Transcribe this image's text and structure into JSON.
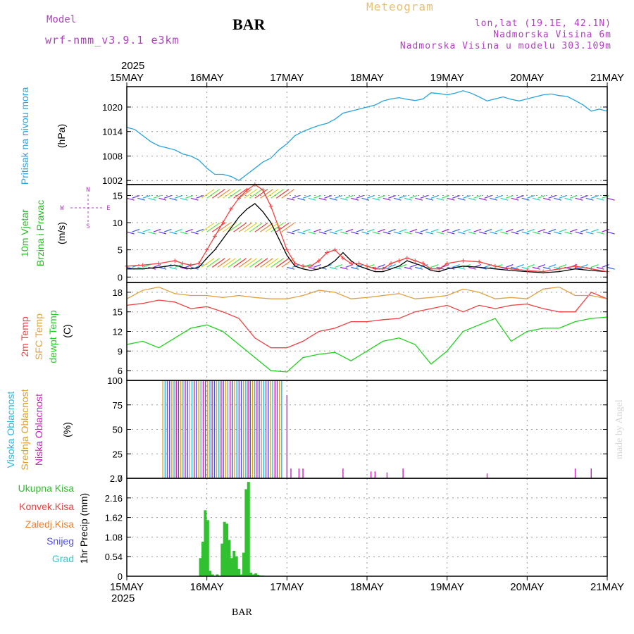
{
  "header": {
    "model_label": "Model",
    "model_name": "wrf-nmm_v3.9.1 e3km",
    "station": "BAR",
    "title": "Meteogram",
    "lonlat": "lon,lat (19.1E, 42.1N)",
    "elevation": "Nadmorska Visina 6m",
    "model_elevation": "Nadmorska Visina u modelu 303.109m",
    "watermark": "made by Angel",
    "footer_station": "BAR"
  },
  "colors": {
    "pressure": "#29a3e0",
    "temp2m": "#f04040",
    "sfc_temp": "#e0a040",
    "dewpt": "#20d020",
    "high_cloud": "#29b8e0",
    "mid_cloud": "#e0a020",
    "low_cloud": "#d020c0",
    "total_precip": "#30c030",
    "conv_precip": "#f04040",
    "frz_precip": "#f08030",
    "snow": "#5050e0",
    "hail": "#30c8c8",
    "header_purple": "#b040c0",
    "title_gold": "#e8c070"
  },
  "chart_data": [
    {
      "type": "line",
      "panel": "pressure",
      "year": "2025",
      "x_tick_labels": [
        "15MAY",
        "16MAY",
        "17MAY",
        "18MAY",
        "19MAY",
        "20MAY",
        "21MAY"
      ],
      "ylabel_name": "Pritisak na nivou mora",
      "ylabel_unit": "(hPa)",
      "ylim": [
        1001,
        1025
      ],
      "yticks": [
        1002,
        1008,
        1014,
        1020
      ],
      "series": [
        {
          "name": "Sea level pressure",
          "color_key": "pressure",
          "x": [
            0,
            0.1,
            0.2,
            0.3,
            0.4,
            0.5,
            0.6,
            0.7,
            0.8,
            0.9,
            1.0,
            1.1,
            1.2,
            1.3,
            1.4,
            1.5,
            1.6,
            1.7,
            1.8,
            1.9,
            2.0,
            2.1,
            2.2,
            2.3,
            2.4,
            2.5,
            2.6,
            2.7,
            2.8,
            2.9,
            3.0,
            3.1,
            3.2,
            3.3,
            3.4,
            3.5,
            3.6,
            3.7,
            3.8,
            3.9,
            4.0,
            4.1,
            4.2,
            4.3,
            4.4,
            4.5,
            4.6,
            4.7,
            4.8,
            4.9,
            5.0,
            5.1,
            5.2,
            5.3,
            5.4,
            5.5,
            5.6,
            5.7,
            5.8,
            5.9,
            6.0
          ],
          "values": [
            1015,
            1014.5,
            1013,
            1011.5,
            1010.5,
            1010,
            1009.5,
            1008.5,
            1008,
            1007,
            1005,
            1003.5,
            1003.5,
            1003,
            1002,
            1003.5,
            1005,
            1006.5,
            1007.5,
            1009.5,
            1011,
            1013,
            1014,
            1014.8,
            1015.5,
            1016,
            1017,
            1018.5,
            1019,
            1019.5,
            1020,
            1020.5,
            1021.5,
            1022,
            1022.3,
            1021.9,
            1021.6,
            1022,
            1023.5,
            1023.3,
            1023,
            1023.4,
            1024,
            1023.4,
            1022.5,
            1021.5,
            1022,
            1022.5,
            1021.9,
            1021.5,
            1022,
            1022.5,
            1023,
            1023.2,
            1022.8,
            1022.6,
            1021.6,
            1020.5,
            1019,
            1019.5,
            1019
          ]
        }
      ]
    },
    {
      "type": "line",
      "panel": "wind",
      "ylabel_name": "10m Vjetar",
      "ylabel_name2": "Brzina i Pravac",
      "ylabel_unit": "(m/s)",
      "compass": [
        "N",
        "S",
        "W",
        "E"
      ],
      "ylim": [
        -1,
        17
      ],
      "yticks": [
        0,
        5,
        10,
        15
      ],
      "barb_levels": [
        14.5,
        8.3,
        1.8
      ],
      "series": [
        {
          "name": "Wind speed",
          "color": "#000000",
          "x": [
            0,
            0.2,
            0.4,
            0.6,
            0.7,
            0.8,
            0.9,
            1.0,
            1.1,
            1.2,
            1.3,
            1.4,
            1.5,
            1.6,
            1.7,
            1.8,
            1.9,
            2.0,
            2.1,
            2.2,
            2.3,
            2.4,
            2.5,
            2.6,
            2.7,
            2.8,
            2.9,
            3.0,
            3.1,
            3.2,
            3.3,
            3.4,
            3.5,
            3.6,
            3.7,
            3.8,
            3.9,
            4.0,
            4.2,
            4.4,
            4.6,
            4.8,
            5.0,
            5.2,
            5.4,
            5.6,
            5.8,
            6.0
          ],
          "values": [
            1.5,
            1.5,
            1.8,
            2.2,
            1.8,
            1.5,
            1.8,
            3.5,
            5,
            7,
            9,
            11,
            12.5,
            13.5,
            12,
            10,
            7,
            4,
            2,
            1.5,
            1.2,
            1.5,
            2,
            3,
            4.5,
            3,
            2,
            1.5,
            1,
            1,
            1.5,
            2,
            3,
            2.5,
            2,
            1.2,
            1,
            1.5,
            2,
            1.8,
            1.5,
            1.2,
            1,
            0.8,
            1,
            1.5,
            1.2,
            1
          ]
        },
        {
          "name": "Gust",
          "color": "#f04040",
          "x": [
            0,
            0.2,
            0.4,
            0.6,
            0.7,
            0.8,
            0.9,
            1.0,
            1.1,
            1.2,
            1.3,
            1.4,
            1.5,
            1.6,
            1.7,
            1.8,
            1.9,
            2.0,
            2.1,
            2.2,
            2.3,
            2.4,
            2.5,
            2.6,
            2.7,
            2.8,
            2.9,
            3.0,
            3.1,
            3.2,
            3.3,
            3.4,
            3.5,
            3.6,
            3.7,
            3.8,
            3.9,
            4.0,
            4.2,
            4.4,
            4.6,
            4.8,
            5.0,
            5.2,
            5.4,
            5.6,
            5.8,
            6.0
          ],
          "values": [
            2,
            2.2,
            2.5,
            3,
            2.5,
            2.2,
            2.5,
            5,
            7.5,
            10,
            12.5,
            14.5,
            16,
            17,
            16,
            13,
            9,
            5,
            2.5,
            2,
            2,
            3,
            4.5,
            5,
            3.5,
            2.5,
            2.5,
            2,
            1.5,
            1.5,
            2.5,
            3,
            3.5,
            3,
            2.5,
            1.5,
            1.5,
            2.5,
            3,
            2.8,
            2,
            1.5,
            1.2,
            1,
            1.5,
            2,
            1.5,
            1
          ]
        }
      ]
    },
    {
      "type": "line",
      "panel": "temperature",
      "ylabel_names": [
        "2m Temp",
        "SFC Temp",
        "dewpt Temp"
      ],
      "ylabel_unit": "(C)",
      "ylim": [
        4.5,
        19.5
      ],
      "yticks": [
        6,
        9,
        12,
        15,
        18
      ],
      "series": [
        {
          "name": "2m Temp",
          "color_key": "temp2m",
          "x": [
            0,
            0.2,
            0.4,
            0.6,
            0.8,
            1.0,
            1.2,
            1.4,
            1.6,
            1.8,
            2.0,
            2.2,
            2.4,
            2.6,
            2.8,
            3.0,
            3.2,
            3.4,
            3.6,
            3.8,
            4.0,
            4.2,
            4.4,
            4.6,
            4.8,
            5.0,
            5.2,
            5.4,
            5.6,
            5.8,
            6.0
          ],
          "values": [
            16,
            16.3,
            16.8,
            16.5,
            15.5,
            15.8,
            15,
            14,
            11,
            9.5,
            9.5,
            10.5,
            12,
            12.5,
            13.5,
            13.5,
            13.8,
            14,
            15,
            15.5,
            16,
            15,
            16,
            15.5,
            16,
            16.2,
            15.5,
            15,
            15,
            18,
            17
          ],
          "point_count": 31
        },
        {
          "name": "SFC Temp",
          "color_key": "sfc_temp",
          "x": [
            0,
            0.2,
            0.4,
            0.6,
            0.8,
            1.0,
            1.2,
            1.4,
            1.6,
            1.8,
            2.0,
            2.2,
            2.4,
            2.6,
            2.8,
            3.0,
            3.2,
            3.4,
            3.6,
            3.8,
            4.0,
            4.2,
            4.4,
            4.6,
            4.8,
            5.0,
            5.2,
            5.4,
            5.6,
            5.8,
            6.0
          ],
          "values": [
            17,
            18.3,
            18.8,
            17.8,
            17.5,
            17.5,
            17.2,
            17.5,
            17.2,
            17,
            17,
            17.5,
            18.3,
            18,
            17,
            17.2,
            17.5,
            17.8,
            17,
            17.2,
            17.5,
            18.5,
            18,
            17,
            17.2,
            17,
            18.5,
            18.8,
            17.5,
            17.5,
            17
          ],
          "point_count": 31
        },
        {
          "name": "dewpt Temp",
          "color_key": "dewpt",
          "x": [
            0,
            0.2,
            0.4,
            0.6,
            0.8,
            1.0,
            1.2,
            1.4,
            1.6,
            1.8,
            2.0,
            2.2,
            2.4,
            2.6,
            2.8,
            3.0,
            3.2,
            3.4,
            3.6,
            3.8,
            4.0,
            4.2,
            4.4,
            4.6,
            4.8,
            5.0,
            5.2,
            5.4,
            5.6,
            5.8,
            6.0
          ],
          "values": [
            10,
            10.5,
            9.5,
            11,
            12.5,
            13,
            12,
            10,
            8,
            6,
            5.8,
            8,
            8.5,
            8.8,
            7.5,
            9,
            10.5,
            11,
            10,
            7,
            9,
            12,
            13,
            14,
            10.5,
            12,
            12.5,
            12.5,
            13.5,
            14,
            14.2
          ],
          "point_count": 31
        }
      ]
    },
    {
      "type": "bar",
      "panel": "clouds",
      "ylabel_names": [
        "Visoka Oblacnost",
        "Srednja Oblacnost",
        "Niska Oblacnost"
      ],
      "ylabel_unit": "(%)",
      "ylim": [
        0,
        100
      ],
      "yticks": [
        0,
        25,
        50,
        75,
        100
      ],
      "full_cloud_range": [
        0.45,
        1.95
      ],
      "values_pct": 100,
      "late_low_cloud": [
        {
          "x": 2.0,
          "value": 85
        },
        {
          "x": 2.05,
          "value": 10
        },
        {
          "x": 2.15,
          "value": 10
        },
        {
          "x": 2.2,
          "value": 10
        },
        {
          "x": 2.7,
          "value": 10
        },
        {
          "x": 3.05,
          "value": 7
        },
        {
          "x": 3.1,
          "value": 7
        },
        {
          "x": 3.25,
          "value": 6
        },
        {
          "x": 3.45,
          "value": 10
        },
        {
          "x": 4.5,
          "value": 5
        },
        {
          "x": 5.6,
          "value": 10
        },
        {
          "x": 5.8,
          "value": 10
        }
      ]
    },
    {
      "type": "bar",
      "panel": "precip",
      "legend": [
        "Ukupna Kisa",
        "Konvek.Kisa",
        "Zaledj.Kisa",
        "Snijeg",
        "Grad"
      ],
      "ylabel": "1hr Precip (mm)",
      "ylim": [
        0,
        2.7
      ],
      "yticks": [
        0,
        0.54,
        1.08,
        1.62,
        2.16,
        2.7
      ],
      "series": [
        {
          "name": "Ukupna Kisa",
          "color_key": "total_precip",
          "x": [
            0.92,
            0.95,
            0.98,
            1.01,
            1.04,
            1.07,
            1.13,
            1.19,
            1.22,
            1.25,
            1.28,
            1.31,
            1.34,
            1.37,
            1.4,
            1.43,
            1.46,
            1.49,
            1.52,
            1.55,
            1.58,
            1.61,
            1.64,
            1.67,
            1.7
          ],
          "values": [
            0.5,
            0.95,
            1.82,
            1.55,
            0.15,
            0.05,
            0.05,
            0.9,
            1.5,
            1.45,
            1.0,
            0.5,
            0.7,
            0.55,
            0.2,
            0.05,
            0.65,
            2.4,
            2.6,
            0.1,
            0.05,
            0.08,
            0.04,
            0.02,
            0.02
          ]
        }
      ]
    }
  ]
}
